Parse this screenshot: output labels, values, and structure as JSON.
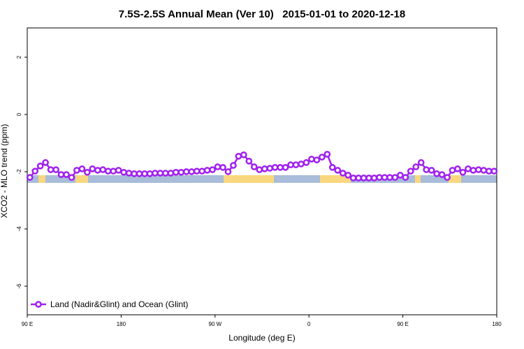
{
  "chart_data": {
    "type": "line",
    "title": "7.5S-2.5S Annual Mean (Ver 10)   2015-01-01 to 2020-12-18",
    "x_label": "Longitude (deg E)",
    "y_label": "XCO2 - MLO trend (ppm)",
    "xlim": [
      90,
      540
    ],
    "ylim": [
      -7,
      3
    ],
    "xticks": [
      {
        "value": 90,
        "label": "90 E"
      },
      180,
      {
        "value": 270,
        "label": "90 W"
      },
      {
        "value": 360,
        "label": "0"
      },
      {
        "value": 450,
        "label": "90 E"
      },
      {
        "value": 540,
        "label": "180"
      }
    ],
    "yticks": [
      2,
      0,
      -2,
      -4,
      -6
    ],
    "legend": "bottom-left",
    "x": [
      92.5,
      97.5,
      102.5,
      107.5,
      112.5,
      117.5,
      122.5,
      127.5,
      132.5,
      137.5,
      142.5,
      147.5,
      152.5,
      157.5,
      162.5,
      167.5,
      172.5,
      177.5,
      182.5,
      187.5,
      192.5,
      197.5,
      202.5,
      207.5,
      212.5,
      217.5,
      222.5,
      227.5,
      232.5,
      237.5,
      242.5,
      247.5,
      252.5,
      257.5,
      262.5,
      267.5,
      272.5,
      277.5,
      282.5,
      287.5,
      292.5,
      297.5,
      302.5,
      307.5,
      312.5,
      317.5,
      322.5,
      327.5,
      332.5,
      337.5,
      342.5,
      347.5,
      352.5,
      357.5,
      362.5,
      367.5,
      372.5,
      377.5,
      382.5,
      387.5,
      392.5,
      397.5,
      402.5,
      407.5,
      412.5,
      417.5,
      422.5,
      427.5,
      432.5,
      437.5,
      442.5,
      447.5,
      452.5,
      457.5,
      462.5,
      467.5,
      472.5,
      477.5,
      482.5,
      487.5,
      492.5,
      497.5,
      502.5,
      507.5,
      512.5,
      517.5,
      522.5,
      527.5,
      532.5,
      537.5
    ],
    "series": [
      {
        "name": "Land (Nadir&Glint) and Ocean (Glint)",
        "color": "#a020f0",
        "values": [
          -2.2,
          -1.98,
          -1.8,
          -1.68,
          -1.93,
          -1.93,
          -2.1,
          -2.1,
          -2.2,
          -1.95,
          -1.9,
          -2.02,
          -1.9,
          -1.95,
          -1.93,
          -1.98,
          -1.98,
          -1.95,
          -2.02,
          -2.05,
          -2.07,
          -2.07,
          -2.07,
          -2.07,
          -2.05,
          -2.05,
          -2.05,
          -2.05,
          -2.02,
          -2.02,
          -2.0,
          -2.0,
          -1.98,
          -1.98,
          -1.95,
          -1.93,
          -1.83,
          -1.85,
          -2.0,
          -1.78,
          -1.46,
          -1.41,
          -1.63,
          -1.83,
          -1.93,
          -1.9,
          -1.88,
          -1.85,
          -1.85,
          -1.85,
          -1.76,
          -1.76,
          -1.73,
          -1.68,
          -1.56,
          -1.59,
          -1.49,
          -1.39,
          -1.85,
          -1.95,
          -2.05,
          -2.12,
          -2.22,
          -2.22,
          -2.22,
          -2.22,
          -2.22,
          -2.2,
          -2.2,
          -2.2,
          -2.2,
          -2.12,
          -2.2,
          -1.98,
          -1.83,
          -1.68,
          -1.93,
          -1.95,
          -2.07,
          -2.1,
          -2.2,
          -1.95,
          -1.9,
          -2.02,
          -1.9,
          -1.95,
          -1.93,
          -1.95,
          -1.98,
          -1.98
        ]
      }
    ]
  }
}
